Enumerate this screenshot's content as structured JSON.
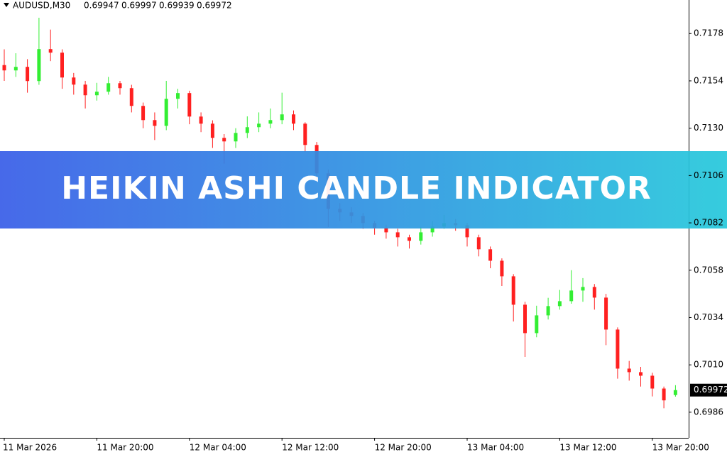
{
  "chart_data": {
    "type": "candlestick",
    "title": "AUDUSD,M30",
    "banner": "HEIKIN ASHI CANDLE INDICATOR",
    "categories": [
      "11 Mar 2026",
      null,
      null,
      null,
      null,
      null,
      null,
      null,
      "11 Mar 20:00",
      null,
      null,
      null,
      null,
      null,
      null,
      null,
      "12 Mar 04:00",
      null,
      null,
      null,
      null,
      null,
      null,
      null,
      "12 Mar 12:00",
      null,
      null,
      null,
      null,
      null,
      null,
      null,
      "12 Mar 20:00",
      null,
      null,
      null,
      null,
      null,
      null,
      null,
      "13 Mar 04:00",
      null,
      null,
      null,
      null,
      null,
      null,
      null,
      "13 Mar 12:00",
      null,
      null,
      null,
      null,
      null,
      null,
      null,
      "13 Mar 20:00",
      null,
      null
    ],
    "open": [
      0.7162,
      0.71593,
      0.71611,
      0.71539,
      0.71701,
      0.71683,
      0.71557,
      0.71521,
      0.71467,
      0.71485,
      0.71528,
      0.71503,
      0.71413,
      0.71341,
      0.71312,
      0.71449,
      0.71478,
      0.71359,
      0.71323,
      0.71251,
      0.71233,
      0.71276,
      0.71305,
      0.71323,
      0.71341,
      0.7137,
      0.71323,
      0.71215,
      0.71071,
      0.70891,
      0.70873,
      0.70855,
      0.70819,
      0.70794,
      0.70772,
      0.70747,
      0.70729,
      0.70772,
      0.70801,
      0.70819,
      0.70808,
      0.70747,
      0.70686,
      0.70628,
      0.70549,
      0.70405,
      0.70261,
      0.70351,
      0.70398,
      0.70423,
      0.70477,
      0.70495,
      0.70441,
      0.70279,
      0.70081,
      0.70063,
      0.70045,
      0.6998,
      0.69947
    ],
    "high": [
      0.717,
      0.7168,
      0.7165,
      0.7186,
      0.718,
      0.717,
      0.7158,
      0.7154,
      0.7153,
      0.7156,
      0.7154,
      0.7152,
      0.7143,
      0.7138,
      0.7154,
      0.715,
      0.7149,
      0.7138,
      0.7134,
      0.7127,
      0.713,
      0.7136,
      0.7138,
      0.714,
      0.7148,
      0.7139,
      0.7133,
      0.7123,
      0.7109,
      0.7092,
      0.709,
      0.7087,
      0.7083,
      0.7081,
      0.7079,
      0.7076,
      0.708,
      0.7083,
      0.7086,
      0.7084,
      0.7082,
      0.7076,
      0.707,
      0.7064,
      0.7056,
      0.7042,
      0.704,
      0.7044,
      0.7048,
      0.7058,
      0.7054,
      0.7051,
      0.7046,
      0.7029,
      0.7012,
      0.7009,
      0.7006,
      0.6999,
      0.69997
    ],
    "low": [
      0.7154,
      0.7156,
      0.7148,
      0.7152,
      0.7164,
      0.715,
      0.7147,
      0.714,
      0.7144,
      0.7147,
      0.7147,
      0.7138,
      0.713,
      0.7124,
      0.7129,
      0.714,
      0.7132,
      0.7128,
      0.712,
      0.7112,
      0.712,
      0.7125,
      0.7128,
      0.713,
      0.7132,
      0.7129,
      0.7118,
      0.7103,
      0.708,
      0.7083,
      0.7082,
      0.7079,
      0.7076,
      0.7074,
      0.707,
      0.7069,
      0.7071,
      0.7075,
      0.7079,
      0.7078,
      0.707,
      0.7065,
      0.7059,
      0.705,
      0.7032,
      0.7014,
      0.7024,
      0.7033,
      0.7038,
      0.7041,
      0.7042,
      0.7038,
      0.702,
      0.7003,
      0.7002,
      0.6999,
      0.6994,
      0.6988,
      0.69939
    ],
    "close": [
      0.71593,
      0.71611,
      0.71539,
      0.71701,
      0.71683,
      0.71557,
      0.71521,
      0.71467,
      0.71485,
      0.71528,
      0.71503,
      0.71413,
      0.71341,
      0.71312,
      0.71449,
      0.71478,
      0.71359,
      0.71323,
      0.71251,
      0.71233,
      0.71276,
      0.71305,
      0.71323,
      0.71341,
      0.7137,
      0.71323,
      0.71215,
      0.71071,
      0.70891,
      0.70873,
      0.70855,
      0.70819,
      0.70794,
      0.70772,
      0.70747,
      0.70729,
      0.70772,
      0.70801,
      0.70819,
      0.70808,
      0.70747,
      0.70686,
      0.70628,
      0.70549,
      0.70405,
      0.70261,
      0.70351,
      0.70398,
      0.70423,
      0.70477,
      0.70495,
      0.70441,
      0.70279,
      0.70081,
      0.70063,
      0.70045,
      0.6998,
      0.6992,
      0.69972
    ],
    "up_color": "#33ee33",
    "down_color": "#ff2020",
    "ylim": [
      0.6973,
      0.7195
    ],
    "yticks": [
      0.7178,
      0.7154,
      {
        "value": 0.713,
        "label": "0.7130"
      },
      0.7106,
      0.7082,
      0.7058,
      0.7034,
      {
        "value": 0.701,
        "label": "0.7010"
      },
      0.6986
    ]
  }
}
